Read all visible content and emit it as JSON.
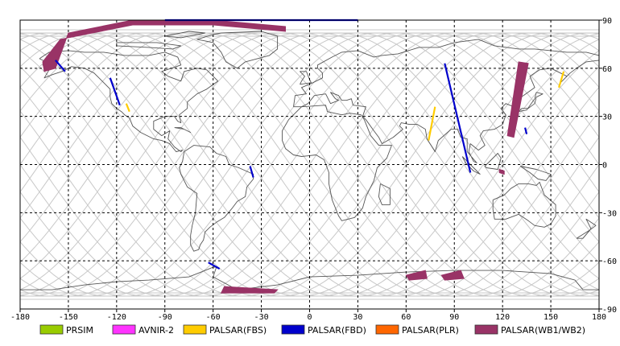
{
  "map": {
    "lon_range": [
      -180,
      180
    ],
    "lat_range": [
      -90,
      90
    ],
    "x_ticks": [
      "-180",
      "-150",
      "-120",
      "-90",
      "-60",
      "-30",
      "0",
      "30",
      "60",
      "90",
      "120",
      "150",
      "180"
    ],
    "y_ticks": [
      "90",
      "60",
      "30",
      "0",
      "-30",
      "-60",
      "-90"
    ],
    "grid": true
  },
  "legend": [
    {
      "label": "PRSIM",
      "color": "#99cc00"
    },
    {
      "label": "AVNIR-2",
      "color": "#ff33ff"
    },
    {
      "label": "PALSAR(FBS)",
      "color": "#ffcc00"
    },
    {
      "label": "PALSAR(FBD)",
      "color": "#0000cc"
    },
    {
      "label": "PALSAR(PLR)",
      "color": "#ff6600"
    },
    {
      "label": "PALSAR(WB1/WB2)",
      "color": "#993366"
    }
  ],
  "observations": [
    {
      "sensor": "PALSAR(WB1/WB2)",
      "lon": [
        -165,
        -166,
        -155,
        -110,
        -60,
        -15,
        -15,
        -60,
        -110,
        -150,
        -158
      ],
      "lat": [
        58,
        64,
        78,
        87,
        87,
        83,
        86,
        90,
        90,
        82,
        60
      ]
    },
    {
      "sensor": "PALSAR(WB1/WB2)",
      "lon": [
        123,
        127,
        136,
        130
      ],
      "lat": [
        18,
        17,
        63,
        64
      ]
    },
    {
      "sensor": "PALSAR(WB1/WB2)",
      "lon": [
        118,
        121,
        121,
        118
      ],
      "lat": [
        -3,
        -4,
        -6,
        -5
      ]
    },
    {
      "sensor": "PALSAR(WB1/WB2)",
      "lon": [
        -53,
        -20,
        -22,
        -55
      ],
      "lat": [
        -76,
        -78,
        -80,
        -80
      ]
    },
    {
      "sensor": "PALSAR(WB1/WB2)",
      "lon": [
        60,
        72,
        73,
        62
      ],
      "lat": [
        -69,
        -66,
        -71,
        -72
      ]
    },
    {
      "sensor": "PALSAR(WB1/WB2)",
      "lon": [
        82,
        94,
        96,
        84
      ],
      "lat": [
        -69,
        -66,
        -71,
        -72
      ]
    },
    {
      "sensor": "PALSAR(FBD)",
      "lon": [
        84,
        100
      ],
      "lat": [
        63,
        -5
      ]
    },
    {
      "sensor": "PALSAR(FBD)",
      "lon": [
        -158,
        -152
      ],
      "lat": [
        65,
        58
      ]
    },
    {
      "sensor": "PALSAR(FBD)",
      "lon": [
        -124,
        -118
      ],
      "lat": [
        54,
        37
      ]
    },
    {
      "sensor": "PALSAR(FBD)",
      "lon": [
        -63,
        -56
      ],
      "lat": [
        -61,
        -65
      ]
    },
    {
      "sensor": "PALSAR(FBD)",
      "lon": [
        -37,
        -35
      ],
      "lat": [
        -1,
        -8
      ]
    },
    {
      "sensor": "PALSAR(FBD)",
      "lon": [
        -90,
        30
      ],
      "lat": [
        90,
        90
      ]
    },
    {
      "sensor": "PALSAR(FBD)",
      "lon": [
        134,
        135
      ],
      "lat": [
        23,
        19
      ]
    },
    {
      "sensor": "PALSAR(FBS)",
      "lon": [
        78,
        74
      ],
      "lat": [
        36,
        15
      ]
    },
    {
      "sensor": "PALSAR(FBS)",
      "lon": [
        158,
        155
      ],
      "lat": [
        58,
        48
      ]
    },
    {
      "sensor": "PALSAR(FBS)",
      "lon": [
        -114,
        -112
      ],
      "lat": [
        38,
        33
      ]
    }
  ]
}
